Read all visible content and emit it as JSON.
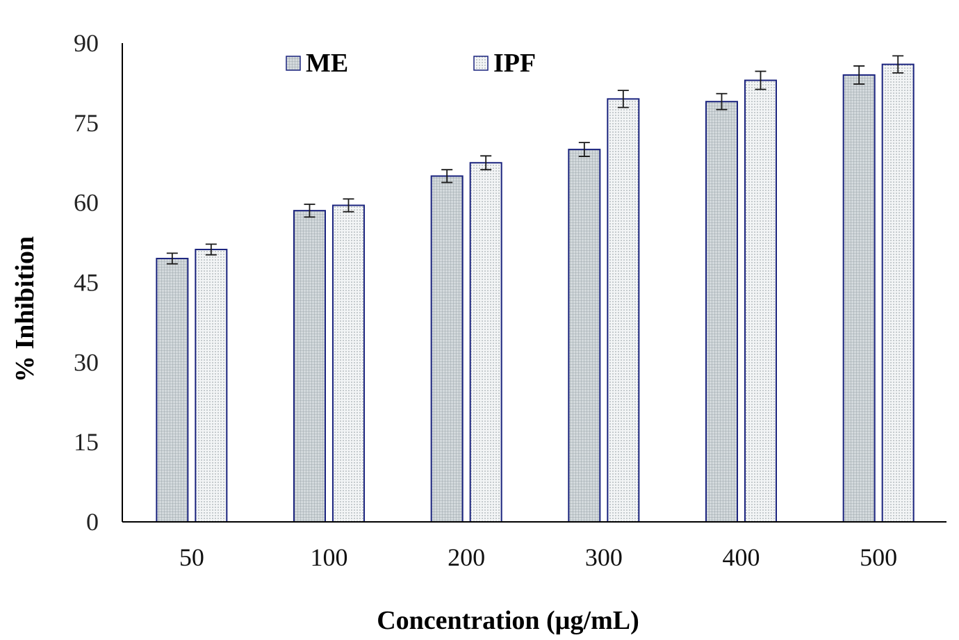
{
  "chart_data": {
    "type": "bar",
    "title": "",
    "xlabel": "Concentration (µg/mL)",
    "ylabel": "% Inhibition",
    "categories": [
      "50",
      "100",
      "200",
      "300",
      "400",
      "500"
    ],
    "ylim": [
      0,
      90
    ],
    "yticks": [
      "0",
      "15",
      "30",
      "45",
      "60",
      "75",
      "90"
    ],
    "legend_position": "top",
    "grid": false,
    "series": [
      {
        "name": "ME",
        "values": [
          49.5,
          58.5,
          65.0,
          70.0,
          79.0,
          84.0
        ],
        "errors": [
          1.0,
          1.2,
          1.2,
          1.3,
          1.5,
          1.7
        ],
        "color": "#cfd8dc",
        "pattern": "grid"
      },
      {
        "name": "IPF",
        "values": [
          51.2,
          59.5,
          67.5,
          79.5,
          83.0,
          86.0
        ],
        "errors": [
          1.0,
          1.2,
          1.3,
          1.6,
          1.7,
          1.6
        ],
        "color": "#eef2f4",
        "pattern": "dots"
      }
    ],
    "colors": {
      "bar_outline": "#1a237e",
      "axis": "#000000",
      "error_bar": "#1a1a1a"
    }
  }
}
